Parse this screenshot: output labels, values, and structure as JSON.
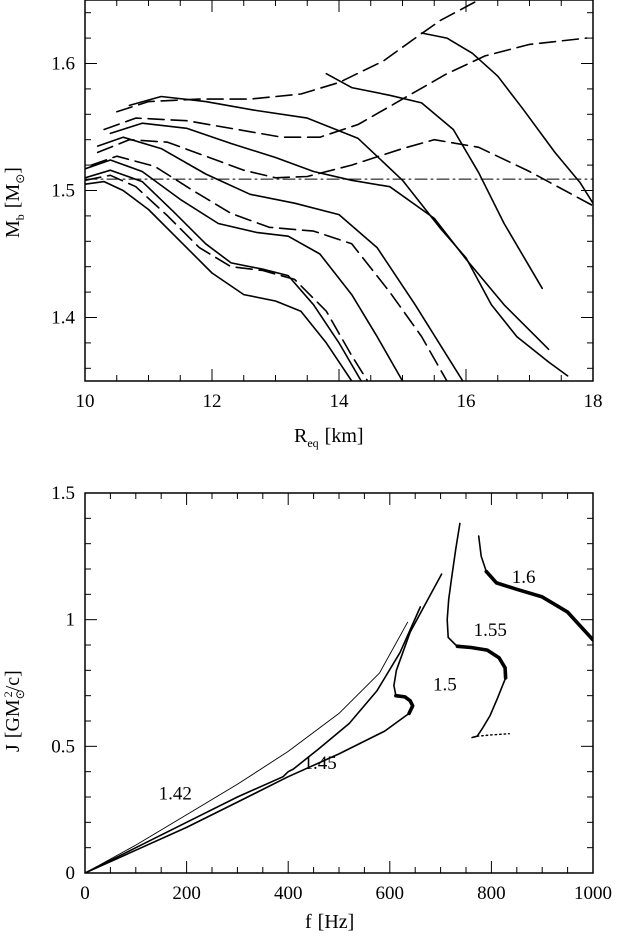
{
  "chart_data": [
    {
      "type": "line",
      "xlabel": "R",
      "xlabel_sub": "eq",
      "xlabel_unit": "[km]",
      "ylabel": "M",
      "ylabel_sub": "b",
      "ylabel_unit": "[M",
      "ylabel_unit_close": "]",
      "xlim": [
        10,
        18
      ],
      "ylim": [
        1.35,
        1.65
      ],
      "xticks": [
        10,
        12,
        14,
        16,
        18
      ],
      "yticks": [
        1.4,
        1.5,
        1.6
      ],
      "reference_line": {
        "y": 1.509,
        "style": "dash-dot"
      },
      "series": [
        {
          "style": "solid",
          "points": [
            [
              10.0,
              1.505
            ],
            [
              10.3,
              1.507
            ],
            [
              10.6,
              1.5
            ],
            [
              11.0,
              1.485
            ],
            [
              11.5,
              1.46
            ],
            [
              12.0,
              1.435
            ],
            [
              12.5,
              1.418
            ],
            [
              13.0,
              1.413
            ],
            [
              13.4,
              1.405
            ],
            [
              13.8,
              1.38
            ],
            [
              14.2,
              1.35
            ]
          ]
        },
        {
          "style": "dash",
          "points": [
            [
              10.0,
              1.508
            ],
            [
              10.4,
              1.512
            ],
            [
              10.8,
              1.503
            ],
            [
              11.3,
              1.48
            ],
            [
              11.8,
              1.455
            ],
            [
              12.3,
              1.44
            ],
            [
              12.8,
              1.437
            ],
            [
              13.3,
              1.43
            ],
            [
              13.8,
              1.405
            ],
            [
              14.2,
              1.37
            ],
            [
              14.45,
              1.35
            ]
          ]
        },
        {
          "style": "solid",
          "points": [
            [
              10.0,
              1.51
            ],
            [
              10.4,
              1.516
            ],
            [
              10.9,
              1.507
            ],
            [
              11.4,
              1.483
            ],
            [
              11.9,
              1.458
            ],
            [
              12.3,
              1.443
            ],
            [
              12.8,
              1.438
            ],
            [
              13.2,
              1.433
            ],
            [
              13.6,
              1.41
            ],
            [
              14.0,
              1.38
            ],
            [
              14.35,
              1.35
            ]
          ]
        },
        {
          "style": "solid",
          "points": [
            [
              10.0,
              1.517
            ],
            [
              10.4,
              1.524
            ],
            [
              10.9,
              1.515
            ],
            [
              11.5,
              1.493
            ],
            [
              12.1,
              1.474
            ],
            [
              12.7,
              1.467
            ],
            [
              13.2,
              1.464
            ],
            [
              13.7,
              1.45
            ],
            [
              14.2,
              1.418
            ],
            [
              14.6,
              1.385
            ],
            [
              15.0,
              1.35
            ]
          ]
        },
        {
          "style": "dash",
          "points": [
            [
              10.1,
              1.52
            ],
            [
              10.5,
              1.527
            ],
            [
              11.1,
              1.519
            ],
            [
              11.7,
              1.5
            ],
            [
              12.3,
              1.482
            ],
            [
              12.9,
              1.471
            ],
            [
              13.6,
              1.468
            ],
            [
              14.2,
              1.458
            ],
            [
              14.8,
              1.42
            ],
            [
              15.3,
              1.385
            ],
            [
              15.7,
              1.35
            ]
          ]
        },
        {
          "style": "solid",
          "points": [
            [
              10.2,
              1.535
            ],
            [
              10.6,
              1.542
            ],
            [
              11.2,
              1.533
            ],
            [
              11.9,
              1.513
            ],
            [
              12.6,
              1.497
            ],
            [
              13.3,
              1.49
            ],
            [
              14.0,
              1.481
            ],
            [
              14.6,
              1.455
            ],
            [
              15.2,
              1.41
            ],
            [
              15.7,
              1.37
            ],
            [
              15.95,
              1.35
            ]
          ]
        },
        {
          "style": "dash",
          "points": [
            [
              10.2,
              1.53
            ],
            [
              10.7,
              1.54
            ],
            [
              11.3,
              1.538
            ],
            [
              11.9,
              1.527
            ],
            [
              12.5,
              1.516
            ],
            [
              13.0,
              1.51
            ],
            [
              13.5,
              1.511
            ],
            [
              14.2,
              1.52
            ],
            [
              15.0,
              1.533
            ],
            [
              15.5,
              1.54
            ],
            [
              16.2,
              1.534
            ],
            [
              17.0,
              1.515
            ],
            [
              18.0,
              1.488
            ]
          ]
        },
        {
          "style": "solid",
          "points": [
            [
              10.4,
              1.545
            ],
            [
              10.9,
              1.553
            ],
            [
              11.6,
              1.549
            ],
            [
              12.3,
              1.537
            ],
            [
              13.0,
              1.526
            ],
            [
              13.6,
              1.515
            ],
            [
              14.2,
              1.508
            ],
            [
              14.8,
              1.503
            ],
            [
              15.5,
              1.478
            ],
            [
              16.0,
              1.446
            ],
            [
              16.6,
              1.41
            ],
            [
              17.1,
              1.385
            ],
            [
              17.3,
              1.375
            ]
          ]
        },
        {
          "style": "dash",
          "points": [
            [
              10.3,
              1.548
            ],
            [
              10.8,
              1.557
            ],
            [
              11.6,
              1.555
            ],
            [
              12.4,
              1.548
            ],
            [
              13.1,
              1.542
            ],
            [
              13.7,
              1.542
            ],
            [
              14.3,
              1.552
            ],
            [
              15.0,
              1.572
            ],
            [
              15.7,
              1.592
            ],
            [
              16.3,
              1.606
            ],
            [
              17.0,
              1.615
            ],
            [
              17.9,
              1.62
            ]
          ]
        },
        {
          "style": "solid",
          "points": [
            [
              10.7,
              1.567
            ],
            [
              11.2,
              1.574
            ],
            [
              11.9,
              1.57
            ],
            [
              12.7,
              1.563
            ],
            [
              13.5,
              1.557
            ],
            [
              14.3,
              1.541
            ],
            [
              15.0,
              1.508
            ],
            [
              15.6,
              1.47
            ],
            [
              16.0,
              1.447
            ],
            [
              16.4,
              1.41
            ],
            [
              16.8,
              1.385
            ],
            [
              17.3,
              1.365
            ],
            [
              17.6,
              1.354
            ]
          ]
        },
        {
          "style": "solid",
          "points": [
            [
              13.8,
              1.592
            ],
            [
              14.2,
              1.581
            ],
            [
              14.8,
              1.575
            ],
            [
              15.3,
              1.569
            ],
            [
              15.8,
              1.548
            ],
            [
              16.2,
              1.514
            ],
            [
              16.6,
              1.474
            ],
            [
              17.0,
              1.44
            ],
            [
              17.2,
              1.423
            ]
          ]
        },
        {
          "style": "dash",
          "points": [
            [
              10.5,
              1.562
            ],
            [
              11.0,
              1.57
            ],
            [
              11.8,
              1.572
            ],
            [
              12.6,
              1.572
            ],
            [
              13.4,
              1.576
            ],
            [
              14.0,
              1.585
            ],
            [
              14.7,
              1.602
            ],
            [
              15.2,
              1.62
            ],
            [
              15.6,
              1.634
            ],
            [
              16.2,
              1.65
            ]
          ]
        },
        {
          "style": "solid",
          "points": [
            [
              15.3,
              1.624
            ],
            [
              15.7,
              1.62
            ],
            [
              16.1,
              1.608
            ],
            [
              16.5,
              1.59
            ],
            [
              16.9,
              1.564
            ],
            [
              17.4,
              1.53
            ],
            [
              17.8,
              1.506
            ],
            [
              18.0,
              1.49
            ]
          ]
        }
      ]
    },
    {
      "type": "line",
      "xlabel": "f",
      "xlabel_unit": "[Hz]",
      "ylabel": "J",
      "ylabel_unit": "[GM",
      "ylabel_unit_sup": "2",
      "ylabel_unit_tail": "/c]",
      "xlim": [
        0,
        1000
      ],
      "ylim": [
        0,
        1.5
      ],
      "xticks": [
        0,
        200,
        400,
        600,
        800,
        1000
      ],
      "yticks": [
        0,
        0.5,
        1,
        1.5
      ],
      "yticklabels": [
        "0",
        "0.5",
        "1",
        "1.5"
      ],
      "series": [
        {
          "name": "1.42",
          "style": "thin",
          "label_at": [
            145,
            0.29
          ],
          "points": [
            [
              0,
              0
            ],
            [
              100,
              0.11
            ],
            [
              200,
              0.23
            ],
            [
              300,
              0.35
            ],
            [
              400,
              0.48
            ],
            [
              500,
              0.63
            ],
            [
              580,
              0.79
            ],
            [
              635,
              0.99
            ]
          ]
        },
        {
          "name": "1.45",
          "style": "solid",
          "label_at": [
            430,
            0.41
          ],
          "points": [
            [
              0,
              0
            ],
            [
              100,
              0.1
            ],
            [
              200,
              0.2
            ],
            [
              300,
              0.3
            ],
            [
              390,
              0.38
            ],
            [
              400,
              0.4
            ],
            [
              410,
              0.41
            ],
            [
              460,
              0.49
            ],
            [
              520,
              0.59
            ],
            [
              575,
              0.72
            ],
            [
              620,
              0.87
            ],
            [
              660,
              1.05
            ]
          ]
        },
        {
          "name": "1.5",
          "style": "solid",
          "label_at": [
            685,
            0.72
          ],
          "points": [
            [
              0,
              0
            ],
            [
              100,
              0.09
            ],
            [
              200,
              0.18
            ],
            [
              300,
              0.28
            ],
            [
              400,
              0.38
            ],
            [
              500,
              0.47
            ],
            [
              590,
              0.56
            ],
            [
              638,
              0.63
            ],
            [
              645,
              0.66
            ],
            [
              640,
              0.68
            ],
            [
              630,
              0.695
            ],
            [
              612,
              0.7
            ],
            [
              608,
              0.74
            ],
            [
              613,
              0.8
            ],
            [
              640,
              0.95
            ],
            [
              675,
              1.08
            ],
            [
              702,
              1.18
            ]
          ]
        },
        {
          "name": "1.55",
          "style": "solid",
          "label_at": [
            765,
            0.935
          ],
          "points": [
            [
              762,
              0.535
            ],
            [
              772,
              0.54
            ],
            [
              782,
              0.57
            ],
            [
              797,
              0.62
            ],
            [
              812,
              0.69
            ],
            [
              828,
              0.77
            ],
            [
              827,
              0.81
            ],
            [
              815,
              0.85
            ],
            [
              792,
              0.88
            ],
            [
              760,
              0.89
            ],
            [
              730,
              0.9
            ],
            [
              715,
              0.93
            ],
            [
              713,
              1.0
            ],
            [
              716,
              1.08
            ],
            [
              722,
              1.17
            ],
            [
              730,
              1.28
            ],
            [
              738,
              1.38
            ]
          ]
        },
        {
          "name": "1.6",
          "style": "solid",
          "label_at": [
            840,
            1.145
          ],
          "points": [
            [
              775,
              1.33
            ],
            [
              780,
              1.25
            ],
            [
              790,
              1.19
            ],
            [
              810,
              1.145
            ],
            [
              850,
              1.12
            ],
            [
              900,
              1.09
            ],
            [
              950,
              1.03
            ],
            [
              1000,
              0.92
            ]
          ]
        }
      ],
      "thick_segments": [
        {
          "series": "1.5",
          "points": [
            [
              612,
              0.7
            ],
            [
              630,
              0.695
            ],
            [
              640,
              0.68
            ],
            [
              645,
              0.66
            ],
            [
              638,
              0.63
            ]
          ]
        },
        {
          "series": "1.55",
          "points": [
            [
              733,
              0.895
            ],
            [
              760,
              0.89
            ],
            [
              792,
              0.88
            ],
            [
              815,
              0.85
            ],
            [
              827,
              0.81
            ],
            [
              828,
              0.77
            ]
          ]
        },
        {
          "series": "1.6",
          "points": [
            [
              790,
              1.19
            ],
            [
              810,
              1.145
            ],
            [
              850,
              1.12
            ],
            [
              900,
              1.09
            ],
            [
              950,
              1.03
            ],
            [
              1000,
              0.92
            ]
          ]
        }
      ],
      "dotted_segments": [
        {
          "series": "1.55",
          "points": [
            [
              772,
              0.54
            ],
            [
              800,
              0.545
            ],
            [
              835,
              0.55
            ]
          ]
        }
      ]
    }
  ]
}
